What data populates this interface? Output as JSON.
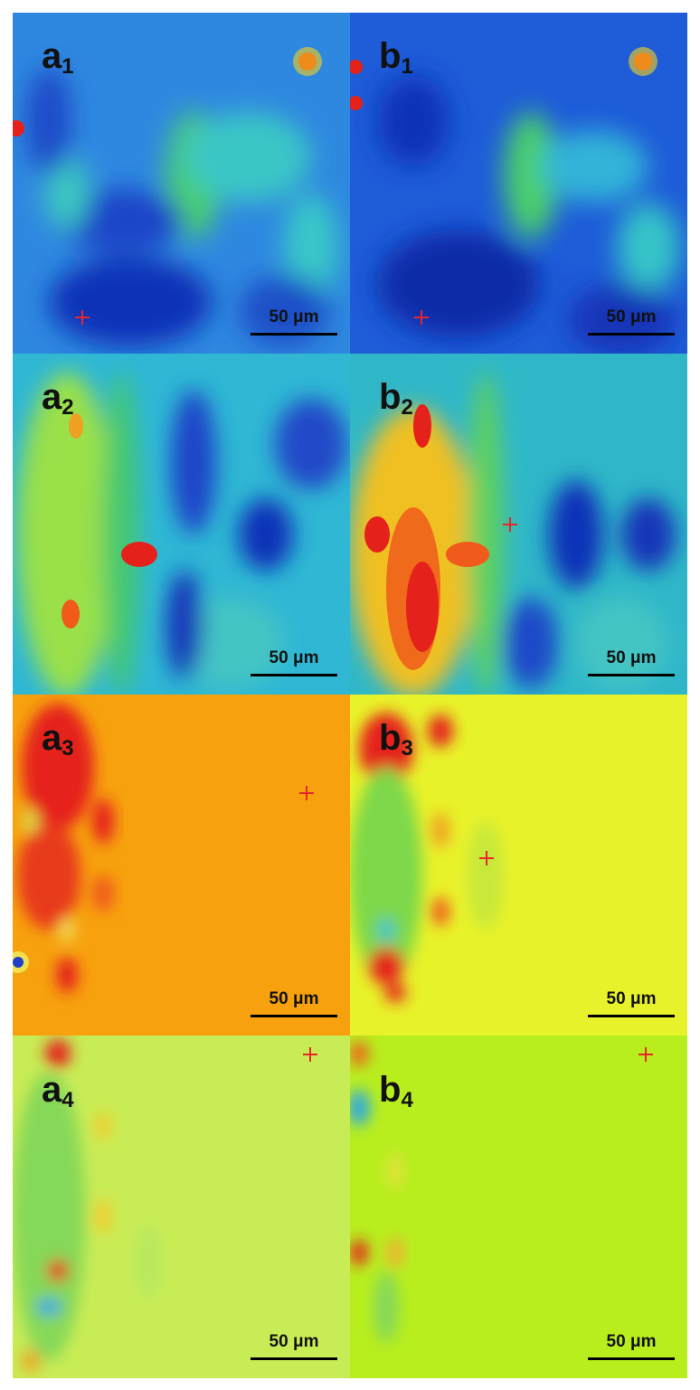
{
  "figure": {
    "panels": [
      {
        "id": "a1",
        "letter": "a",
        "sub": "1",
        "scale_label": "50 μm",
        "base_color": "#2f88e0"
      },
      {
        "id": "b1",
        "letter": "b",
        "sub": "1",
        "scale_label": "50 μm",
        "base_color": "#1e5cd8"
      },
      {
        "id": "a2",
        "letter": "a",
        "sub": "2",
        "scale_label": "50 μm",
        "base_color": "#2fb7d4"
      },
      {
        "id": "b2",
        "letter": "b",
        "sub": "2",
        "scale_label": "50 μm",
        "base_color": "#2fb7c8"
      },
      {
        "id": "a3",
        "letter": "a",
        "sub": "3",
        "scale_label": "50 μm",
        "base_color": "#f7a10e"
      },
      {
        "id": "b3",
        "letter": "b",
        "sub": "3",
        "scale_label": "50 μm",
        "base_color": "#e8f22a"
      },
      {
        "id": "a4",
        "letter": "a",
        "sub": "4",
        "scale_label": "50 μm",
        "base_color": "#c8ec55"
      },
      {
        "id": "b4",
        "letter": "b",
        "sub": "4",
        "scale_label": "50 μm",
        "base_color": "#b8ee1e"
      }
    ],
    "marker_color": "#e8262a"
  }
}
